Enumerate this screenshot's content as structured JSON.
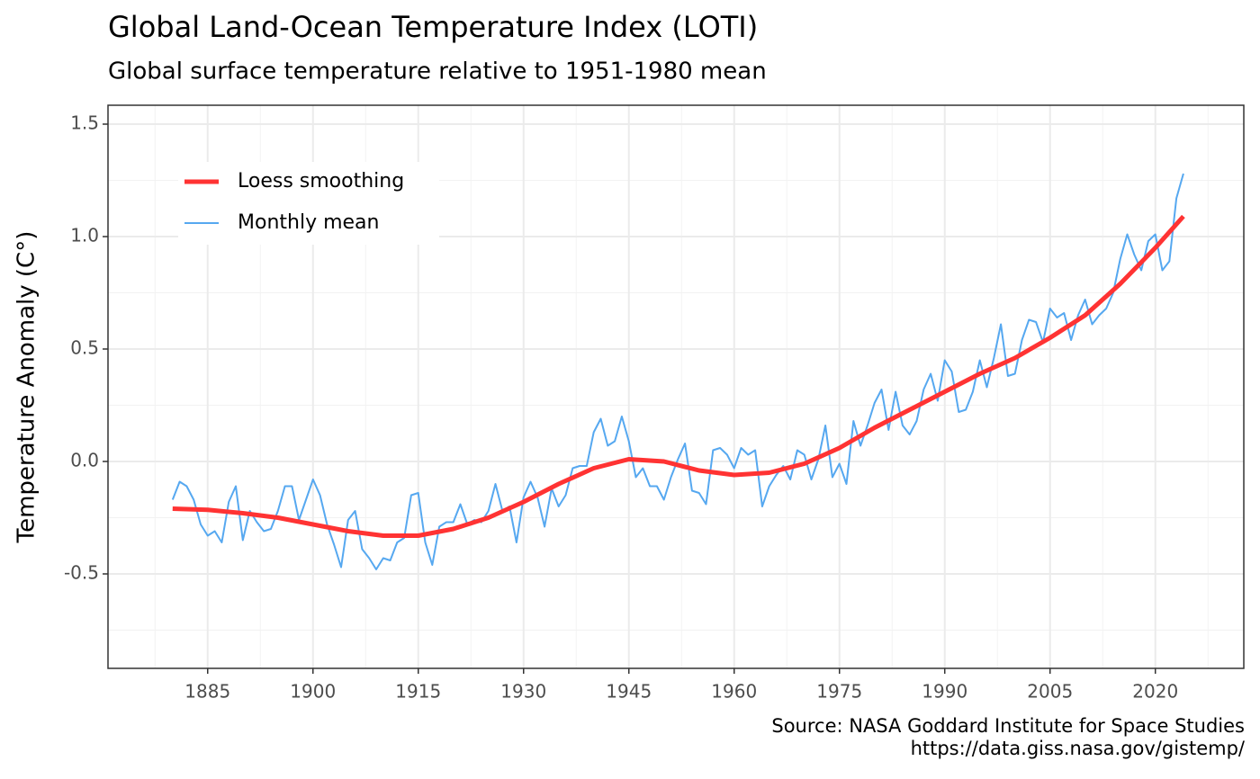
{
  "chart_data": {
    "type": "line",
    "title": "Global Land-Ocean Temperature Index (LOTI)",
    "subtitle": "Global surface temperature relative to 1951-1980 mean",
    "y_label": "Temperature Anomaly (C°)",
    "caption": [
      "Source: NASA Goddard Institute for Space Studies",
      "https://data.giss.nasa.gov/gistemp/"
    ],
    "xlim": [
      1870.8,
      2032.6
    ],
    "ylim": [
      -0.92,
      1.584
    ],
    "xticks": [
      1885,
      1900,
      1915,
      1930,
      1945,
      1960,
      1975,
      1990,
      2005,
      2020
    ],
    "yticks": [
      -0.5,
      {
        "value": 0,
        "label": "0.0"
      },
      0.5,
      {
        "value": 1,
        "label": "1.0"
      },
      1.5
    ],
    "grid": true,
    "legend_position": "top-left",
    "series": [
      {
        "name": "Loess smoothing",
        "color": "#ff3333",
        "width": 5,
        "x": [
          1880,
          1885,
          1890,
          1895,
          1900,
          1905,
          1910,
          1915,
          1920,
          1925,
          1930,
          1935,
          1940,
          1945,
          1950,
          1955,
          1960,
          1965,
          1970,
          1975,
          1980,
          1985,
          1990,
          1995,
          2000,
          2005,
          2010,
          2015,
          2020,
          2024
        ],
        "values": [
          -0.21,
          -0.215,
          -0.23,
          -0.25,
          -0.28,
          -0.31,
          -0.33,
          -0.33,
          -0.3,
          -0.25,
          -0.18,
          -0.1,
          -0.03,
          0.01,
          0,
          -0.04,
          -0.06,
          -0.05,
          -0.01,
          0.06,
          0.15,
          0.23,
          0.31,
          0.39,
          0.46,
          0.55,
          0.65,
          0.79,
          0.95,
          1.09
        ]
      },
      {
        "name": "Monthly mean",
        "color": "#56a8f0",
        "width": 2,
        "x": [
          1880,
          1881,
          1882,
          1883,
          1884,
          1885,
          1886,
          1887,
          1888,
          1889,
          1890,
          1891,
          1892,
          1893,
          1894,
          1895,
          1896,
          1897,
          1898,
          1899,
          1900,
          1901,
          1902,
          1903,
          1904,
          1905,
          1906,
          1907,
          1908,
          1909,
          1910,
          1911,
          1912,
          1913,
          1914,
          1915,
          1916,
          1917,
          1918,
          1919,
          1920,
          1921,
          1922,
          1923,
          1924,
          1925,
          1926,
          1927,
          1928,
          1929,
          1930,
          1931,
          1932,
          1933,
          1934,
          1935,
          1936,
          1937,
          1938,
          1939,
          1940,
          1941,
          1942,
          1943,
          1944,
          1945,
          1946,
          1947,
          1948,
          1949,
          1950,
          1951,
          1952,
          1953,
          1954,
          1955,
          1956,
          1957,
          1958,
          1959,
          1960,
          1961,
          1962,
          1963,
          1964,
          1965,
          1966,
          1967,
          1968,
          1969,
          1970,
          1971,
          1972,
          1973,
          1974,
          1975,
          1976,
          1977,
          1978,
          1979,
          1980,
          1981,
          1982,
          1983,
          1984,
          1985,
          1986,
          1987,
          1988,
          1989,
          1990,
          1991,
          1992,
          1993,
          1994,
          1995,
          1996,
          1997,
          1998,
          1999,
          2000,
          2001,
          2002,
          2003,
          2004,
          2005,
          2006,
          2007,
          2008,
          2009,
          2010,
          2011,
          2012,
          2013,
          2014,
          2015,
          2016,
          2017,
          2018,
          2019,
          2020,
          2021,
          2022,
          2023,
          2024
        ],
        "values": [
          -0.17,
          -0.09,
          -0.11,
          -0.17,
          -0.28,
          -0.33,
          -0.31,
          -0.36,
          -0.18,
          -0.11,
          -0.35,
          -0.22,
          -0.27,
          -0.31,
          -0.3,
          -0.22,
          -0.11,
          -0.11,
          -0.26,
          -0.17,
          -0.08,
          -0.15,
          -0.28,
          -0.37,
          -0.47,
          -0.26,
          -0.22,
          -0.39,
          -0.43,
          -0.48,
          -0.43,
          -0.44,
          -0.36,
          -0.34,
          -0.15,
          -0.14,
          -0.36,
          -0.46,
          -0.29,
          -0.27,
          -0.27,
          -0.19,
          -0.28,
          -0.26,
          -0.27,
          -0.22,
          -0.1,
          -0.22,
          -0.2,
          -0.36,
          -0.16,
          -0.09,
          -0.16,
          -0.29,
          -0.12,
          -0.2,
          -0.15,
          -0.03,
          -0.02,
          -0.02,
          0.13,
          0.19,
          0.07,
          0.09,
          0.2,
          0.09,
          -0.07,
          -0.03,
          -0.11,
          -0.11,
          -0.17,
          -0.07,
          0.01,
          0.08,
          -0.13,
          -0.14,
          -0.19,
          0.05,
          0.06,
          0.03,
          -0.03,
          0.06,
          0.03,
          0.05,
          -0.2,
          -0.11,
          -0.06,
          -0.02,
          -0.08,
          0.05,
          0.03,
          -0.08,
          0.01,
          0.16,
          -0.07,
          -0.01,
          -0.1,
          0.18,
          0.07,
          0.16,
          0.26,
          0.32,
          0.14,
          0.31,
          0.16,
          0.12,
          0.18,
          0.32,
          0.39,
          0.27,
          0.45,
          0.4,
          0.22,
          0.23,
          0.31,
          0.45,
          0.33,
          0.46,
          0.61,
          0.38,
          0.39,
          0.54,
          0.63,
          0.62,
          0.53,
          0.68,
          0.64,
          0.66,
          0.54,
          0.65,
          0.72,
          0.61,
          0.65,
          0.68,
          0.75,
          0.9,
          1.01,
          0.92,
          0.85,
          0.98,
          1.01,
          0.85,
          0.89,
          1.17,
          1.28
        ]
      }
    ]
  }
}
